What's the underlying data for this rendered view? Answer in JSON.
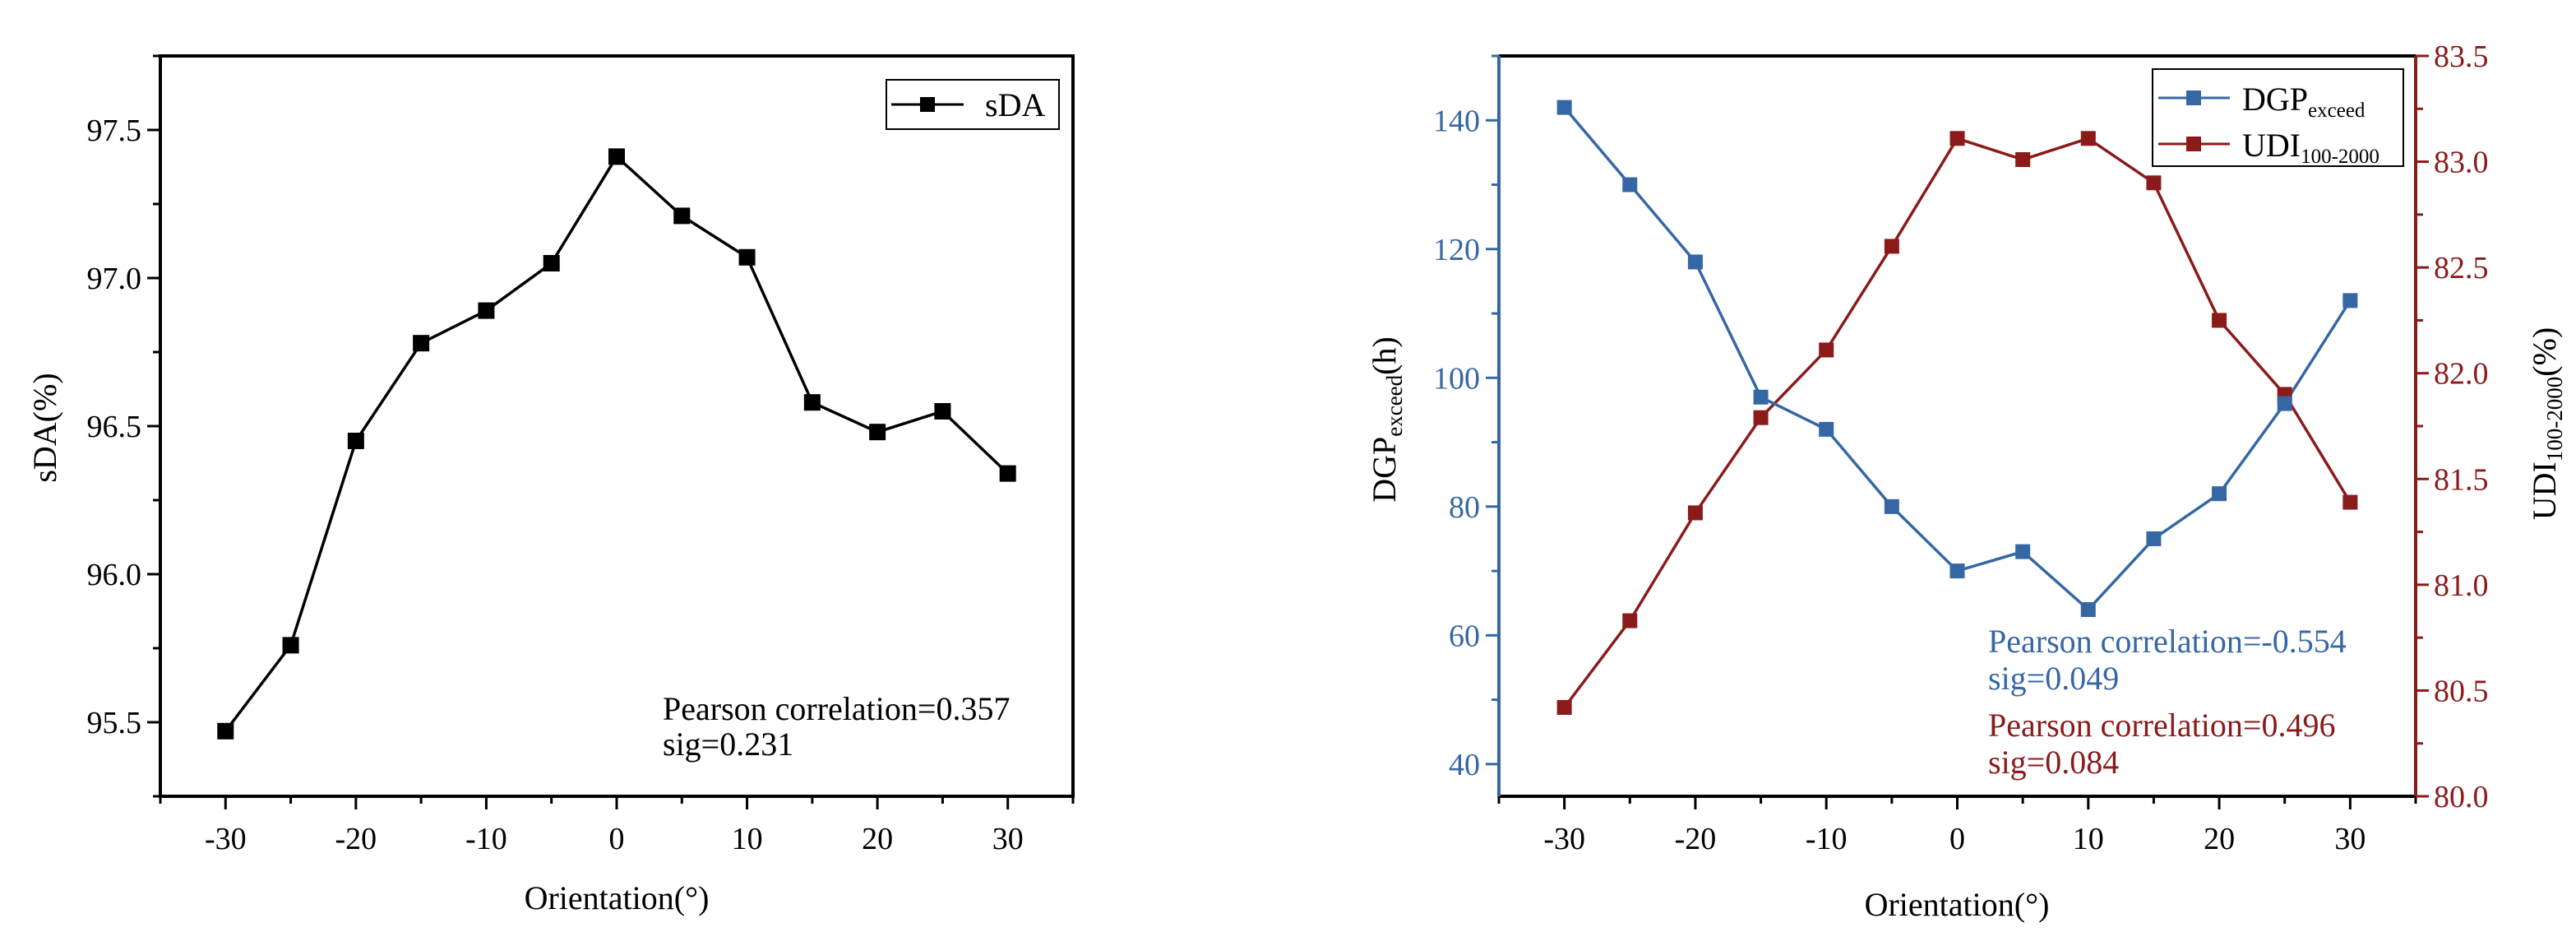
{
  "chart_data": [
    {
      "type": "line",
      "title": "",
      "xlabel": "Orientation(°)",
      "ylabel": "sDA(%)",
      "x": [
        -30,
        -25,
        -20,
        -15,
        -10,
        -5,
        0,
        5,
        10,
        15,
        20,
        25,
        30
      ],
      "xlim": [
        -35,
        35
      ],
      "ylim": [
        95.25,
        97.75
      ],
      "x_ticks": [
        -30,
        -20,
        -10,
        0,
        10,
        20,
        30
      ],
      "x_tick_labels": [
        "-30",
        "-20",
        "-10",
        "0",
        "10",
        "20",
        "30"
      ],
      "y_ticks": [
        95.5,
        96.0,
        96.5,
        97.0,
        97.5
      ],
      "y_tick_labels": [
        "95.5",
        "96.0",
        "96.5",
        "97.0",
        "97.5"
      ],
      "grid": false,
      "legend_position": "top-right",
      "series": [
        {
          "name": "sDA",
          "color": "#000000",
          "marker": "square",
          "values": [
            95.47,
            95.76,
            96.45,
            96.78,
            96.89,
            97.05,
            97.41,
            97.21,
            97.07,
            96.58,
            96.48,
            96.55,
            96.34
          ]
        }
      ],
      "annotations": [
        {
          "text": "Pearson correlation=0.357",
          "color": "#000000"
        },
        {
          "text": "sig=0.231",
          "color": "#000000"
        }
      ]
    },
    {
      "type": "line",
      "title": "",
      "xlabel": "Orientation(°)",
      "ylabel_left": {
        "main": "DGP",
        "sub": "exceed",
        "tail": "(h)"
      },
      "ylabel_right": {
        "main": "UDI",
        "sub": "100-2000",
        "tail": "(%)"
      },
      "x": [
        -30,
        -25,
        -20,
        -15,
        -10,
        -5,
        0,
        5,
        10,
        15,
        20,
        25,
        30
      ],
      "xlim": [
        -35,
        35
      ],
      "ylim_left": [
        35,
        150
      ],
      "ylim_right": [
        80.0,
        83.5
      ],
      "x_ticks": [
        -30,
        -20,
        -10,
        0,
        10,
        20,
        30
      ],
      "x_tick_labels": [
        "-30",
        "-20",
        "-10",
        "0",
        "10",
        "20",
        "30"
      ],
      "y_ticks_left": [
        40,
        60,
        80,
        100,
        120,
        140
      ],
      "y_tick_labels_left": [
        "40",
        "60",
        "80",
        "100",
        "120",
        "140"
      ],
      "y_ticks_right": [
        80.0,
        80.5,
        81.0,
        81.5,
        82.0,
        82.5,
        83.0,
        83.5
      ],
      "y_tick_labels_right": [
        "80.0",
        "80.5",
        "81.0",
        "81.5",
        "82.0",
        "82.5",
        "83.0",
        "83.5"
      ],
      "grid": false,
      "legend_position": "top-right",
      "series": [
        {
          "name": "DGP",
          "name_sub": "exceed",
          "axis": "left",
          "color": "#3567a5",
          "marker": "square",
          "values": [
            142,
            130,
            118,
            97,
            92,
            80,
            70,
            73,
            64,
            75,
            82,
            96,
            112
          ]
        },
        {
          "name": "UDI",
          "name_sub": "100-2000",
          "axis": "right",
          "color": "#8b1a1a",
          "marker": "square",
          "values": [
            80.42,
            80.83,
            81.34,
            81.79,
            82.11,
            82.6,
            83.11,
            83.01,
            83.11,
            82.9,
            82.25,
            81.9,
            81.39
          ]
        }
      ],
      "annotations": [
        {
          "text": "Pearson correlation=-0.554",
          "color": "#3567a5"
        },
        {
          "text": "sig=0.049",
          "color": "#3567a5"
        },
        {
          "text": "Pearson correlation=0.496",
          "color": "#8b1a1a"
        },
        {
          "text": "sig=0.084",
          "color": "#8b1a1a"
        }
      ]
    }
  ]
}
